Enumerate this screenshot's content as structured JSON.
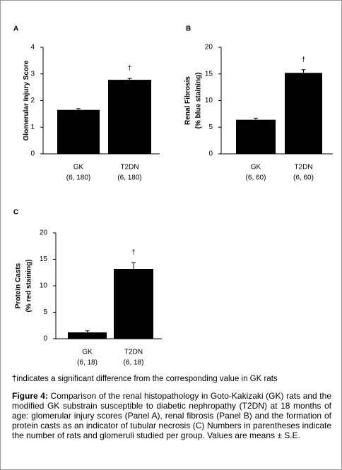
{
  "chart_data": [
    {
      "type": "bar",
      "panel": "A",
      "ylabel": [
        "Glomerular Injury Score"
      ],
      "categories": [
        "GK",
        "T2DN"
      ],
      "category_notes": [
        "(6, 180)",
        "(6, 180)"
      ],
      "values": [
        1.65,
        2.78
      ],
      "errors": [
        0.05,
        0.05
      ],
      "marker_labels": [
        null,
        "†"
      ],
      "color": "#000000",
      "ylim": [
        0,
        4
      ],
      "yticks": [
        0,
        1,
        2,
        3,
        4
      ]
    },
    {
      "type": "bar",
      "panel": "B",
      "ylabel": [
        "Renal Fibrosis",
        "(% blue staining)"
      ],
      "categories": [
        "GK",
        "T2DN"
      ],
      "category_notes": [
        "(6, 60)",
        "(6, 60)"
      ],
      "values": [
        6.4,
        15.2
      ],
      "errors": [
        0.3,
        0.6
      ],
      "marker_labels": [
        null,
        "†"
      ],
      "color": "#000000",
      "ylim": [
        0,
        20
      ],
      "yticks": [
        0,
        5,
        10,
        15,
        20
      ]
    },
    {
      "type": "bar",
      "panel": "C",
      "ylabel": [
        "Protein Casts",
        "(% red staining)"
      ],
      "categories": [
        "GK",
        "T2DN"
      ],
      "category_notes": [
        "(6, 18)",
        "(6, 18)"
      ],
      "values": [
        1.2,
        13.2
      ],
      "errors": [
        0.3,
        1.2
      ],
      "marker_labels": [
        null,
        "†"
      ],
      "color": "#000000",
      "ylim": [
        0,
        20
      ],
      "yticks": [
        0,
        5,
        10,
        15,
        20
      ]
    }
  ],
  "footnote": "†indicates a significant difference from the corresponding value in GK rats",
  "caption": {
    "label": "Figure 4:",
    "text": "Comparison of the renal histopathology in Goto-Kakizaki (GK) rats and the modified GK substrain susceptible to diabetic nephropathy (T2DN) at 18 months of age: glomerular injury scores (Panel A), renal fibrosis (Panel B) and the formation of protein casts as an indicator of tubular necrosis (C) Numbers in parentheses indicate the number of rats and glomeruli studied per group. Values are means ± S.E."
  }
}
